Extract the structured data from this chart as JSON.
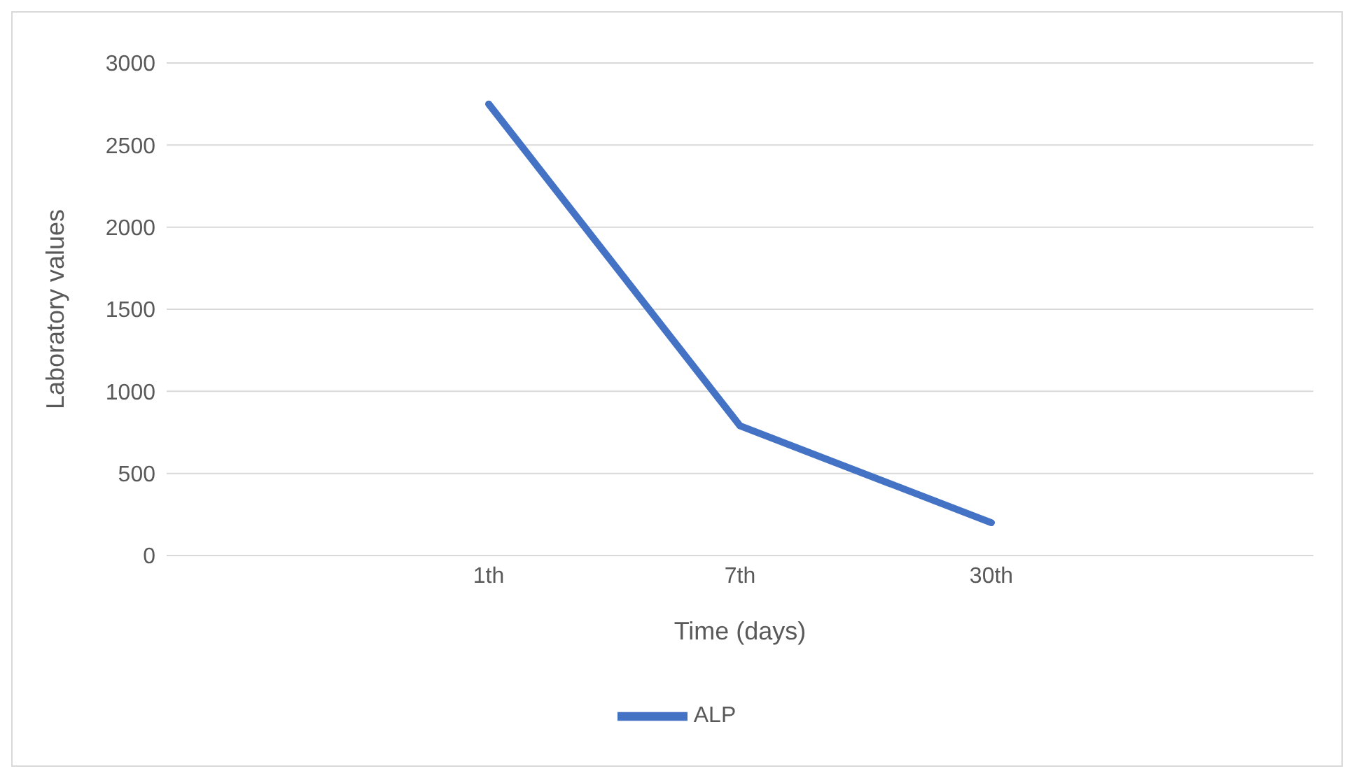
{
  "chart_data": {
    "type": "line",
    "xlabel": "Time (days)",
    "ylabel": "Laboratory values",
    "categories": [
      "1th",
      "7th",
      "30th"
    ],
    "series": [
      {
        "name": "ALP",
        "color": "#4472c4",
        "values": [
          2750,
          790,
          200
        ]
      }
    ],
    "ylim": [
      0,
      3000
    ],
    "yticks": [
      0,
      500,
      1000,
      1500,
      2000,
      2500,
      3000
    ],
    "grid": "y",
    "legend": "bottom",
    "marker": "none",
    "line_style": "solid"
  }
}
